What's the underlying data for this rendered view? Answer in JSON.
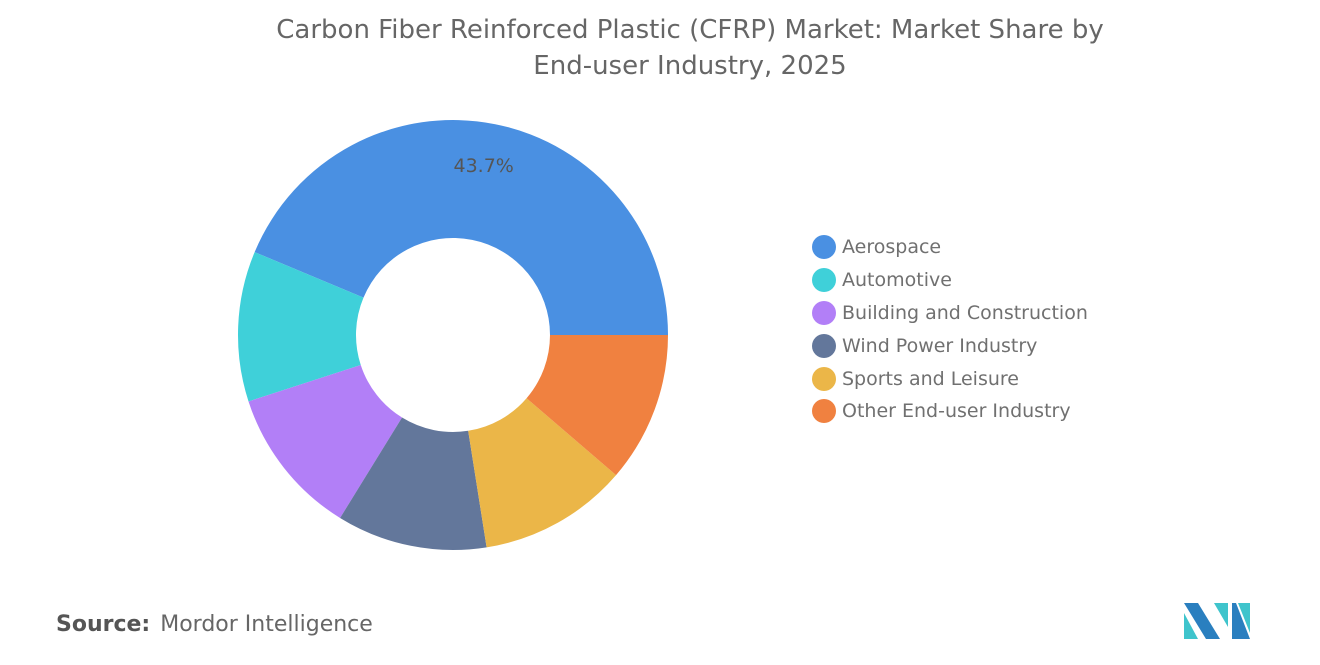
{
  "chart_data": {
    "type": "donut",
    "title": "Carbon Fiber Reinforced Plastic (CFRP) Market: Market Share by End-user Industry, 2025",
    "title_lines": [
      "Carbon Fiber Reinforced Plastic (CFRP) Market: Market Share by",
      "End-user Industry, 2025"
    ],
    "categories": [
      "Aerospace",
      "Automotive",
      "Building and Construction",
      "Wind Power Industry",
      "Sports and Leisure",
      "Other End-user Industry"
    ],
    "values": [
      43.7,
      11.3,
      11.2,
      11.3,
      11.2,
      11.3
    ],
    "data_labels": {
      "Aerospace": "43.7%"
    },
    "colors": [
      "#4a90e2",
      "#3fd0d9",
      "#b27ff7",
      "#63779b",
      "#ebb648",
      "#f08140"
    ],
    "legend_placement": "right"
  },
  "source": {
    "label": "Source:",
    "value": "Mordor Intelligence"
  },
  "logo": {
    "text": "Mordor Intelligence",
    "colors": [
      "#2a7fbf",
      "#3fc4cc"
    ]
  }
}
